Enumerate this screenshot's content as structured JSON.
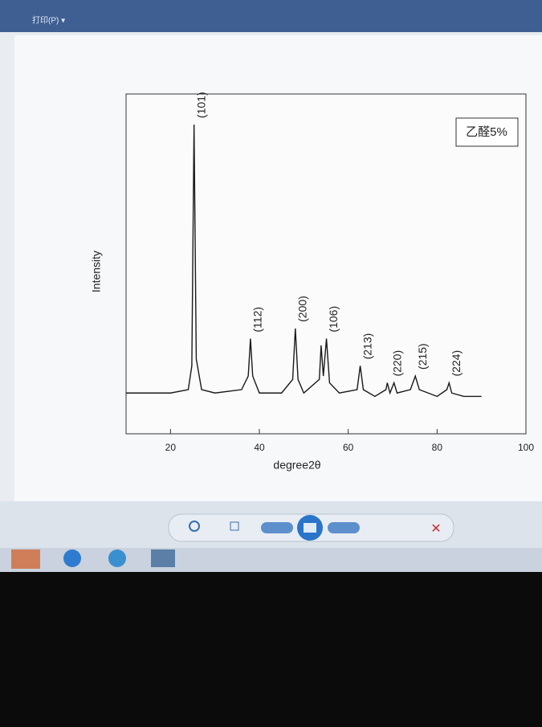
{
  "ui": {
    "menu": "打印(P) ▾"
  },
  "chart_data": {
    "type": "line",
    "x_label": "degree2θ",
    "y_label": "Intensity",
    "x": [
      10,
      20,
      24,
      24.8,
      25.3,
      25.8,
      27,
      30,
      36,
      37.5,
      38,
      38.5,
      40,
      45,
      47.5,
      48.1,
      48.7,
      50,
      53.5,
      53.9,
      54.4,
      55.1,
      55.8,
      58,
      62,
      62.7,
      63.4,
      66,
      68.5,
      68.8,
      69.4,
      70.3,
      71,
      74,
      75.1,
      76,
      80,
      82.2,
      82.7,
      83.3,
      86,
      90
    ],
    "series": [
      {
        "name": "乙醛5%",
        "color": "#1a1a1a",
        "values": [
          12,
          12,
          13,
          20,
          91,
          22,
          13,
          12,
          13,
          17,
          28,
          17,
          12,
          12,
          16,
          31,
          16,
          12,
          16,
          26,
          17,
          28,
          15,
          12,
          13,
          20,
          13,
          11,
          13,
          15,
          12,
          15,
          12,
          13,
          17,
          13,
          11,
          13,
          15,
          12,
          11,
          11
        ]
      }
    ],
    "annotations": [
      {
        "text": "(101)",
        "x": 25.3,
        "y": 91
      },
      {
        "text": "(112)",
        "x": 38,
        "y": 28
      },
      {
        "text": "(200)",
        "x": 48.1,
        "y": 31
      },
      {
        "text": "(106)",
        "x": 55.1,
        "y": 28
      },
      {
        "text": "(213)",
        "x": 62.7,
        "y": 20
      },
      {
        "text": "(220)",
        "x": 69.4,
        "y": 15
      },
      {
        "text": "(215)",
        "x": 75.1,
        "y": 17
      },
      {
        "text": "(224)",
        "x": 82.7,
        "y": 15
      }
    ],
    "xlim": [
      10,
      100
    ],
    "ylim": [
      0,
      100
    ],
    "xticks": [
      20,
      40,
      60,
      80,
      100
    ],
    "legend": "upper right"
  }
}
